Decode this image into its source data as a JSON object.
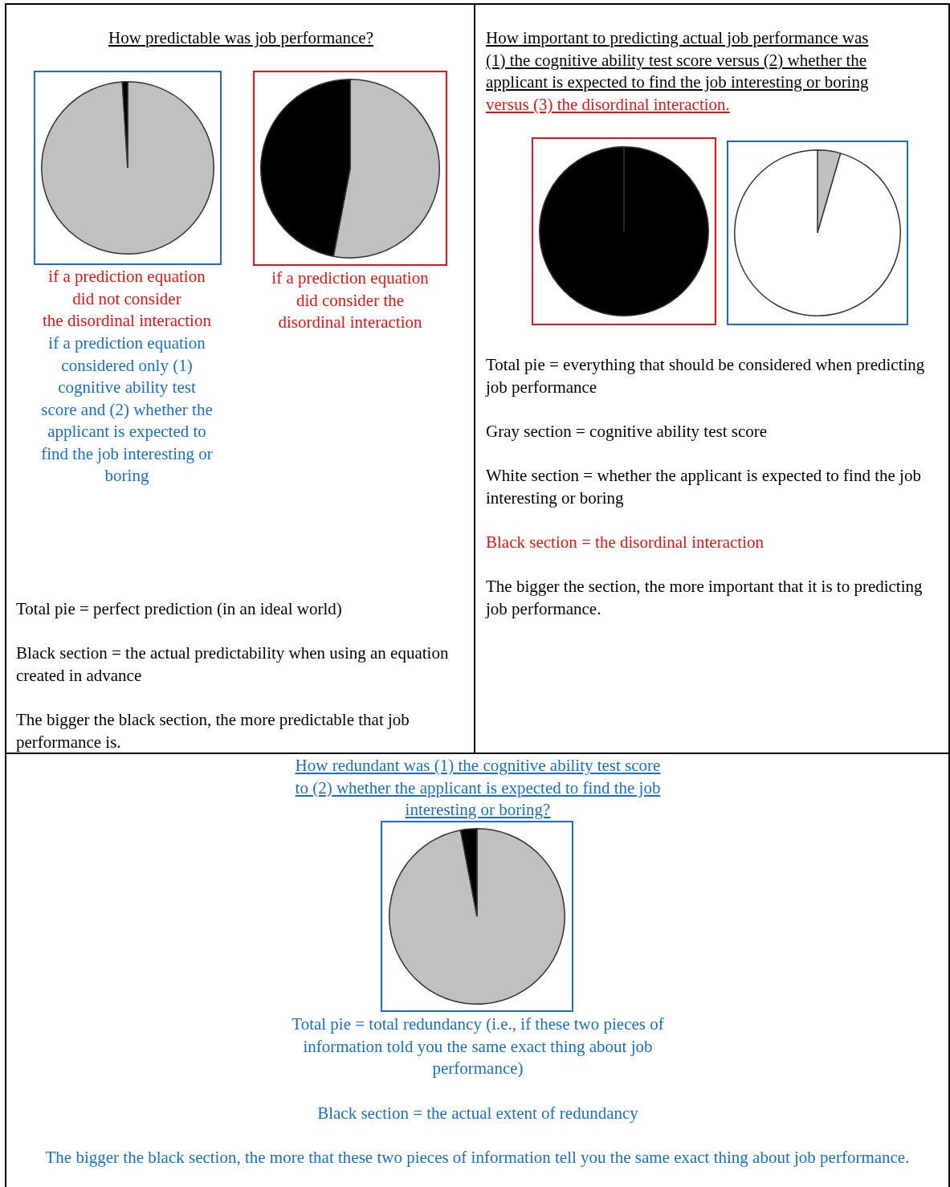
{
  "chart_data": [
    {
      "type": "pie",
      "title": "How predictable was job performance?",
      "categories": [
        null,
        null
      ],
      "values": [
        99,
        1
      ],
      "colors": [
        "#c0c0c0",
        "#000000"
      ],
      "annotations": [
        "if a prediction equation\ndid not consider\nthe disordinal interaction",
        "if a prediction equation\nconsidered only (1)\ncognitive ability test\nscore and (2) whether the\napplicant is expected to\nfind the job interesting or\nboring",
        "Total pie = perfect prediction (in an ideal world)",
        "Black section = the actual predictability when using an equation created in advance",
        "The bigger the black section, the more predictable that job performance is."
      ]
    },
    {
      "type": "pie",
      "categories": [
        null,
        null
      ],
      "values": [
        53,
        47
      ],
      "colors": [
        "#c0c0c0",
        "#000000"
      ],
      "annotations": [
        "if a prediction equation\ndid consider the\ndisordinal interaction"
      ]
    },
    {
      "type": "pie",
      "title": "How important to predicting actual job performance was\n(1) the cognitive ability test score versus (2) whether the\napplicant is expected to find the job interesting or boring",
      "subtitle": "versus (3) the disordinal interaction.",
      "categories": [
        null
      ],
      "values": [
        100
      ],
      "colors": [
        "#000000"
      ],
      "annotations": [
        "Total pie = everything that should be considered when predicting job performance",
        "Gray section = cognitive ability test score",
        "White section = whether the applicant is expected to find the job interesting or boring",
        "Black section = the disordinal interaction",
        "The bigger the section, the more important that it is to predicting job performance."
      ]
    },
    {
      "type": "pie",
      "categories": [
        null,
        null
      ],
      "values": [
        4.5,
        95.5
      ],
      "colors": [
        "#c0c0c0",
        "#ffffff"
      ]
    },
    {
      "type": "pie",
      "title": "How redundant was (1) the cognitive ability test score\nto (2) whether the applicant is expected to find the job\ninteresting or boring?",
      "categories": [
        null,
        null
      ],
      "values": [
        97,
        3
      ],
      "colors": [
        "#c0c0c0",
        "#000000"
      ],
      "annotations": [
        "Total pie = total redundancy (i.e., if these two pieces of\ninformation told you the same exact thing about job\nperformance)",
        "Black section = the actual extent of redundancy",
        "The bigger the black section, the more that these two pieces of information tell you the same exact thing about job performance."
      ]
    }
  ]
}
